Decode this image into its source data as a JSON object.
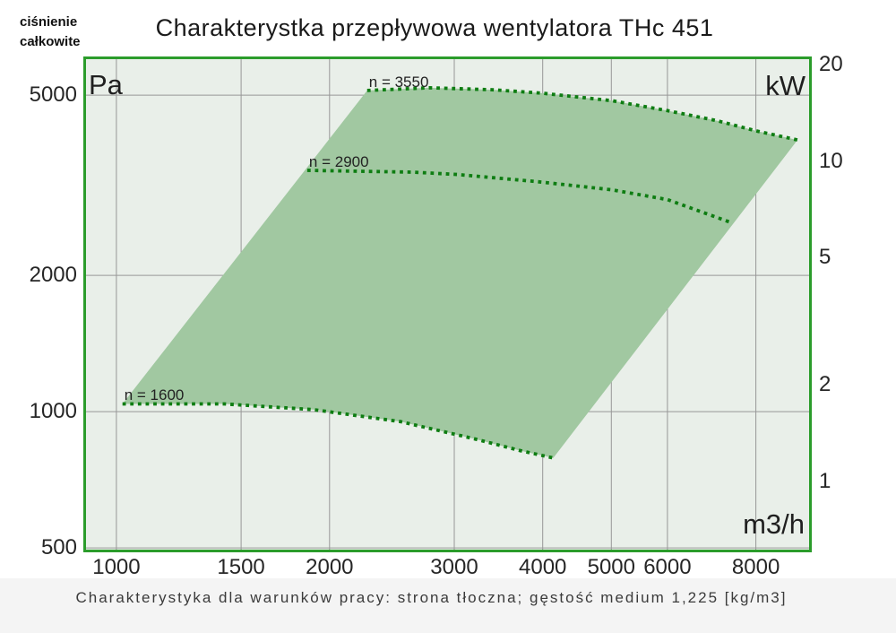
{
  "page": {
    "title": "Charakterystka przepływowa wentylatora THc 451",
    "corner_caption_line1": "ciśnienie",
    "corner_caption_line2": "całkowite",
    "footer_caption": "Charakterystyka dla warunków pracy: strona tłoczna; gęstość medium 1,225 [kg/m3]"
  },
  "chart_data": {
    "type": "area",
    "title": "Charakterystka przepływowa wentylatora THc 451",
    "description": "Fan operating envelope (green area) bounded by dotted constant-speed pressure curves on a log-log grid",
    "x_axis": {
      "label": "m3/h",
      "scale": "log",
      "range": [
        898,
        9594
      ],
      "ticks": [
        1000,
        1500,
        2000,
        3000,
        4000,
        5000,
        6000,
        8000
      ]
    },
    "y_axis_left": {
      "label": "Pa",
      "caption": "ciśnienie całkowite",
      "scale": "log",
      "range": [
        489,
        6086
      ],
      "ticks": [
        5000,
        2000,
        1000,
        500
      ]
    },
    "y_axis_right": {
      "label": "kW",
      "scale": "log",
      "range": [
        0.6,
        21.2
      ],
      "ticks": [
        20,
        10,
        5,
        2,
        1
      ]
    },
    "series": [
      {
        "name": "n = 3550",
        "style": "dotted",
        "points": [
          [
            2260,
            5120
          ],
          [
            2770,
            5190
          ],
          [
            3400,
            5140
          ],
          [
            3990,
            5050
          ],
          [
            5010,
            4860
          ],
          [
            6000,
            4620
          ],
          [
            7050,
            4390
          ],
          [
            8000,
            4170
          ],
          [
            9160,
            3980
          ]
        ]
      },
      {
        "name": "n = 2900",
        "style": "dotted",
        "points": [
          [
            1860,
            3410
          ],
          [
            2620,
            3380
          ],
          [
            3030,
            3340
          ],
          [
            3930,
            3220
          ],
          [
            5010,
            3090
          ],
          [
            6000,
            2940
          ],
          [
            7410,
            2610
          ]
        ]
      },
      {
        "name": "n = 1600",
        "style": "dotted",
        "points": [
          [
            1020,
            1040
          ],
          [
            1420,
            1040
          ],
          [
            1900,
            1010
          ],
          [
            2520,
            950
          ],
          [
            3210,
            870
          ],
          [
            3720,
            820
          ],
          [
            4140,
            790
          ]
        ]
      }
    ],
    "envelope": "closed region between curves n = 3550 (top) and n = 1600 (bottom), joined by straight min-flow and max-flow edges",
    "grid": "on",
    "colors": {
      "fill": "#a1c8a1",
      "curve": "#0e7d12",
      "plot_background": "#e9efe9",
      "plot_border": "#2b9c2b",
      "gridline": "#979797"
    }
  }
}
